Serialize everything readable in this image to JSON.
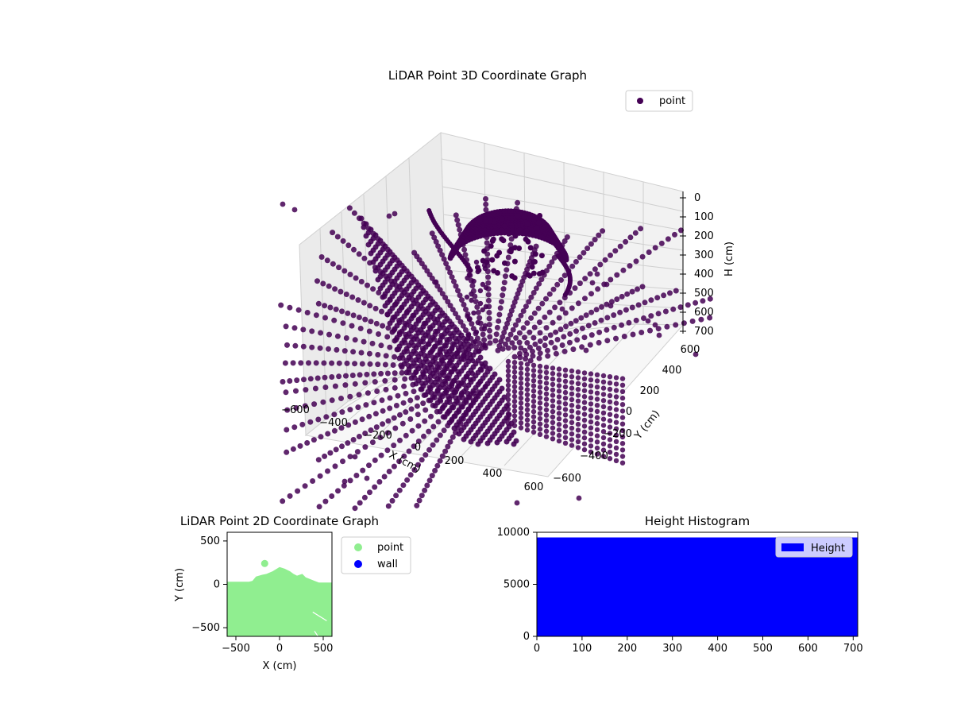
{
  "chart_data": [
    {
      "type": "scatter",
      "title": "LiDAR Point 3D Coordinate Graph",
      "xlabel": "X (cm)",
      "ylabel": "Y (cm)",
      "zlabel": "H (cm)",
      "xlim": [
        -600,
        600
      ],
      "ylim": [
        -600,
        600
      ],
      "zlim": [
        0,
        700
      ],
      "z_inverted": true,
      "x_ticks": [
        "−600",
        "−400",
        "−200",
        "0",
        "200",
        "400",
        "600"
      ],
      "y_ticks": [
        "−600",
        "−400",
        "−200",
        "0",
        "200",
        "400",
        "600"
      ],
      "z_ticks": [
        "0",
        "100",
        "200",
        "300",
        "400",
        "500",
        "600",
        "700"
      ],
      "legend": [
        {
          "name": "point",
          "color": "#440154"
        }
      ],
      "legend_position": "upper-right",
      "grid": true,
      "point_color": "#440154",
      "series": [
        {
          "name": "point"
        }
      ]
    },
    {
      "type": "scatter",
      "title": "LiDAR Point 2D Coordinate Graph",
      "xlabel": "X (cm)",
      "ylabel": "Y (cm)",
      "xlim": [
        -600,
        600
      ],
      "ylim": [
        -600,
        600
      ],
      "x_ticks": [
        "−500",
        "0",
        "500"
      ],
      "y_ticks": [
        "−500",
        "0",
        "500"
      ],
      "legend": [
        {
          "name": "point",
          "color": "#90ee90"
        },
        {
          "name": "wall",
          "color": "#0000ff"
        }
      ],
      "legend_position": "outside-right",
      "series": [
        {
          "name": "point",
          "color": "#90ee90"
        },
        {
          "name": "wall",
          "color": "#0000ff"
        }
      ]
    },
    {
      "type": "bar",
      "title": "Height Histogram",
      "xlim": [
        0,
        710
      ],
      "ylim": [
        0,
        10000
      ],
      "x_ticks": [
        "0",
        "100",
        "200",
        "300",
        "400",
        "500",
        "600",
        "700"
      ],
      "y_ticks": [
        "0",
        "5000",
        "10000"
      ],
      "legend": [
        {
          "name": "Height",
          "color": "#0000ff"
        }
      ],
      "legend_position": "upper-right",
      "bar_value": 9500,
      "series": [
        {
          "name": "Height",
          "color": "#0000ff"
        }
      ]
    }
  ]
}
